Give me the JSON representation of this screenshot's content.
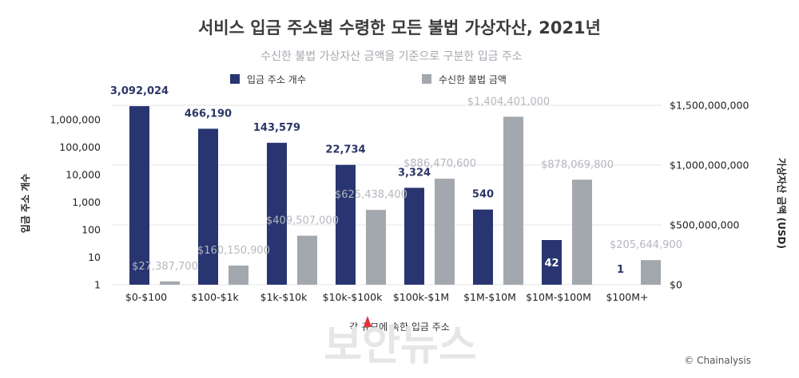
{
  "title": "서비스 입금 주소별 수령한 모든 불법 가상자산, 2021년",
  "subtitle": "수신한 불법 가상자산 금액을 기준으로 구분한 입금 주소",
  "credit": "© Chainalysis",
  "watermark": "보안뉴스",
  "colors": {
    "count": "#283570",
    "amount": "#a3a7ae"
  },
  "chart_data": {
    "type": "bar",
    "xlabel": "각 규모에 속한 입금 주소",
    "categories": [
      "$0-$100",
      "$100-$1k",
      "$1k-$10k",
      "$10k-$100k",
      "$100k-$1M",
      "$1M-$10M",
      "$10M-$100M",
      "$100M+"
    ],
    "series": [
      {
        "name": "입금 주소 개수",
        "axis": "left",
        "scale": "log",
        "values": [
          3092024,
          466190,
          143579,
          22734,
          3324,
          540,
          42,
          1
        ],
        "labels": [
          "3,092,024",
          "466,190",
          "143,579",
          "22,734",
          "3,324",
          "540",
          "42",
          "1"
        ]
      },
      {
        "name": "수신한 불법 금액",
        "axis": "right",
        "scale": "linear",
        "values": [
          27387700,
          160150900,
          409507000,
          625438400,
          886470600,
          1404401000,
          878069800,
          205644900
        ],
        "labels": [
          "$27,387,700",
          "$160,150,900",
          "$409,507,000",
          "$625,438,400",
          "$886,470,600",
          "$1,404,401,000",
          "$878,069,800",
          "$205,644,900"
        ]
      }
    ],
    "y_left": {
      "label": "입금 주소 개수",
      "ticks": [
        "1",
        "10",
        "100",
        "1,000",
        "10,000",
        "100,000",
        "1,000,000"
      ],
      "tick_values": [
        1,
        10,
        100,
        1000,
        10000,
        100000,
        1000000
      ],
      "range": [
        1,
        4000000
      ]
    },
    "y_right": {
      "label": "가상자산 금액 (USD)",
      "ticks": [
        "$0",
        "$500,000,000",
        "$1,000,000,000",
        "$1,500,000,000"
      ],
      "tick_values": [
        0,
        500000000,
        1000000000,
        1500000000
      ],
      "range": [
        0,
        1500000000
      ]
    },
    "legend_position": "top",
    "grid": true
  }
}
